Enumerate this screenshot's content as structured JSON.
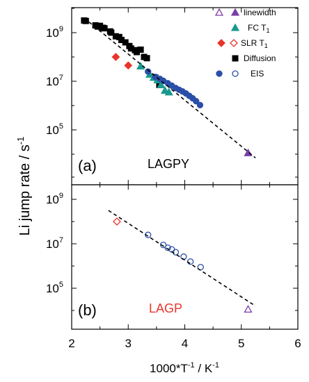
{
  "figure": {
    "ylabel": {
      "base": "Li jump rate / s",
      "sup": "-1"
    },
    "xlabel": {
      "parts": [
        "1000*T",
        "-1",
        " / K",
        "-1"
      ]
    },
    "xticks": [
      2,
      3,
      4,
      5,
      6
    ],
    "yticks": [
      {
        "value": 5,
        "base": "10",
        "exp": "5"
      },
      {
        "value": 7,
        "base": "10",
        "exp": "7"
      },
      {
        "value": 9,
        "base": "10",
        "exp": "9"
      }
    ],
    "legend": [
      {
        "id": "linewidth",
        "label_parts": [
          "linewidth"
        ],
        "symbols": [
          {
            "shape": "triangle",
            "fill": "none",
            "color": "#7b3fa8"
          },
          {
            "shape": "triangle",
            "fill": "#7b3fa8",
            "color": "#7b3fa8"
          }
        ]
      },
      {
        "id": "fct1",
        "label_parts": [
          "FC T",
          "1"
        ],
        "symbols": [
          {
            "shape": "triangle",
            "fill": "#1a9a8e",
            "color": "#1a9a8e"
          }
        ]
      },
      {
        "id": "slr",
        "label_parts": [
          "SLR T",
          "1"
        ],
        "symbols": [
          {
            "shape": "diamond",
            "fill": "#e8352b",
            "color": "#e8352b"
          },
          {
            "shape": "diamond",
            "fill": "none",
            "color": "#e8352b"
          }
        ]
      },
      {
        "id": "diffusion",
        "label_parts": [
          "Diffusion"
        ],
        "symbols": [
          {
            "shape": "square",
            "fill": "#000000",
            "color": "#000000"
          }
        ]
      },
      {
        "id": "eis",
        "label_parts": [
          "EIS"
        ],
        "symbols": [
          {
            "shape": "circle",
            "fill": "#2b4fa8",
            "color": "#2b4fa8"
          },
          {
            "shape": "circle",
            "fill": "none",
            "color": "#2b4fa8"
          }
        ]
      }
    ]
  },
  "chart_data": [
    {
      "type": "scatter",
      "panel_label": "(a)",
      "sample_label": "LAGPY",
      "sample_color": "#000000",
      "xlabel": "1000*T-1 / K-1",
      "ylabel": "Li jump rate / s-1",
      "xlim": [
        2,
        6
      ],
      "ylim_log10": [
        3.8,
        10
      ],
      "yscale": "log",
      "grid": false,
      "legend_position": "top-right",
      "series": [
        {
          "name": "Diffusion",
          "marker": "square",
          "filled": true,
          "color": "#000000",
          "x": [
            2.22,
            2.25,
            2.42,
            2.46,
            2.5,
            2.55,
            2.58,
            2.68,
            2.7,
            2.78,
            2.84,
            2.88,
            2.95,
            3.02,
            3.05,
            3.12,
            3.15,
            3.22,
            3.28,
            3.33,
            3.48,
            3.55
          ],
          "log10_y": [
            9.5,
            9.48,
            9.3,
            9.25,
            9.28,
            9.2,
            9.18,
            9.05,
            9.0,
            8.85,
            8.82,
            8.7,
            8.6,
            8.45,
            8.35,
            8.28,
            8.2,
            8.3,
            8.0,
            7.95,
            7.15,
            6.85
          ]
        },
        {
          "name": "SLR T1",
          "marker": "diamond",
          "filled": true,
          "color": "#e8352b",
          "x": [
            2.78,
            3.0
          ],
          "log10_y": [
            8.0,
            7.65
          ]
        },
        {
          "name": "FC T1",
          "marker": "triangle",
          "filled": true,
          "color": "#1a9a8e",
          "x": [
            3.22,
            3.38,
            3.45,
            3.52,
            3.58,
            3.65,
            3.72
          ],
          "log10_y": [
            7.62,
            7.28,
            7.15,
            7.05,
            6.85,
            6.62,
            6.55
          ]
        },
        {
          "name": "EIS",
          "marker": "circle",
          "filled": true,
          "color": "#2b4fa8",
          "x": [
            3.35,
            3.48,
            3.56,
            3.62,
            3.7,
            3.77,
            3.84,
            3.9,
            3.96,
            4.02,
            4.08,
            4.14,
            4.2,
            4.27
          ],
          "log10_y": [
            7.4,
            7.18,
            7.1,
            7.02,
            6.92,
            6.82,
            6.72,
            6.65,
            6.58,
            6.5,
            6.4,
            6.3,
            6.18,
            6.02
          ]
        },
        {
          "name": "linewidth",
          "marker": "triangle",
          "filled": true,
          "color": "#7b3fa8",
          "x": [
            5.12
          ],
          "log10_y": [
            4.05
          ]
        },
        {
          "name": "fit",
          "style": "dashed",
          "color": "#000000",
          "x": [
            2.22,
            5.25
          ],
          "log10_y": [
            9.6,
            3.85
          ]
        }
      ]
    },
    {
      "type": "scatter",
      "panel_label": "(b)",
      "sample_label": "LAGP",
      "sample_color": "#e8352b",
      "xlabel": "1000*T-1 / K-1",
      "ylabel": "Li jump rate / s-1",
      "xlim": [
        2,
        6
      ],
      "ylim_log10": [
        3.4,
        10.1
      ],
      "yscale": "log",
      "grid": false,
      "series": [
        {
          "name": "SLR T1",
          "marker": "diamond",
          "filled": false,
          "color": "#e8352b",
          "x": [
            2.8
          ],
          "log10_y": [
            8.0
          ]
        },
        {
          "name": "EIS",
          "marker": "circle",
          "filled": false,
          "color": "#2b4fa8",
          "x": [
            3.35,
            3.62,
            3.7,
            3.77,
            3.84,
            3.98,
            4.1,
            4.28
          ],
          "log10_y": [
            7.4,
            6.95,
            6.82,
            6.75,
            6.62,
            6.42,
            6.2,
            5.95
          ]
        },
        {
          "name": "linewidth",
          "marker": "triangle",
          "filled": false,
          "color": "#7b3fa8",
          "x": [
            5.12
          ],
          "log10_y": [
            4.05
          ]
        },
        {
          "name": "fit",
          "style": "dashed",
          "color": "#000000",
          "x": [
            2.65,
            5.25
          ],
          "log10_y": [
            8.5,
            4.2
          ]
        }
      ]
    }
  ]
}
